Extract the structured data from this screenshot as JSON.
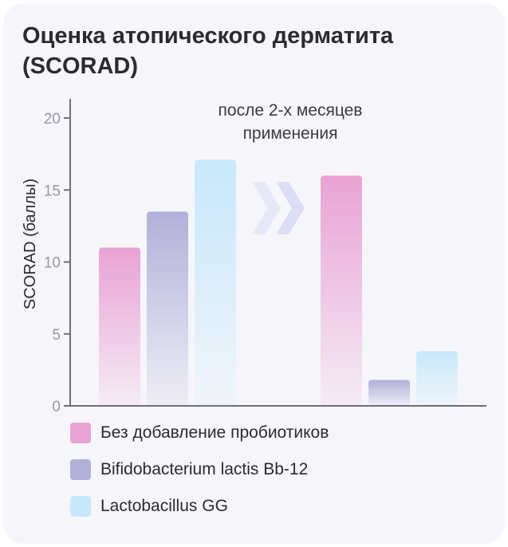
{
  "title": "Оценка атопического дерматита (SCORAD)",
  "chart_data": {
    "type": "bar",
    "ylabel": "SCORAD (баллы)",
    "ylim": [
      0,
      20
    ],
    "yticks": [
      0,
      5,
      10,
      15,
      20
    ],
    "annotation": "после 2-х месяцев применения",
    "groups": [
      {
        "name": "",
        "values": [
          11,
          13.5,
          17.1
        ]
      },
      {
        "name": "после 2-х месяцев применения",
        "values": [
          16,
          1.8,
          3.8
        ]
      }
    ],
    "series": [
      {
        "name": "Без добавление пробиотиков",
        "color": "#e9a2d4"
      },
      {
        "name": "Bifidobacterium lactis Bb-12",
        "color": "#b2b0d8"
      },
      {
        "name": "Lactobacillus GG",
        "color": "#c7e8fb"
      }
    ],
    "transition_icon": "double-chevron-right-icon",
    "grid": false,
    "legend_position": "bottom"
  }
}
